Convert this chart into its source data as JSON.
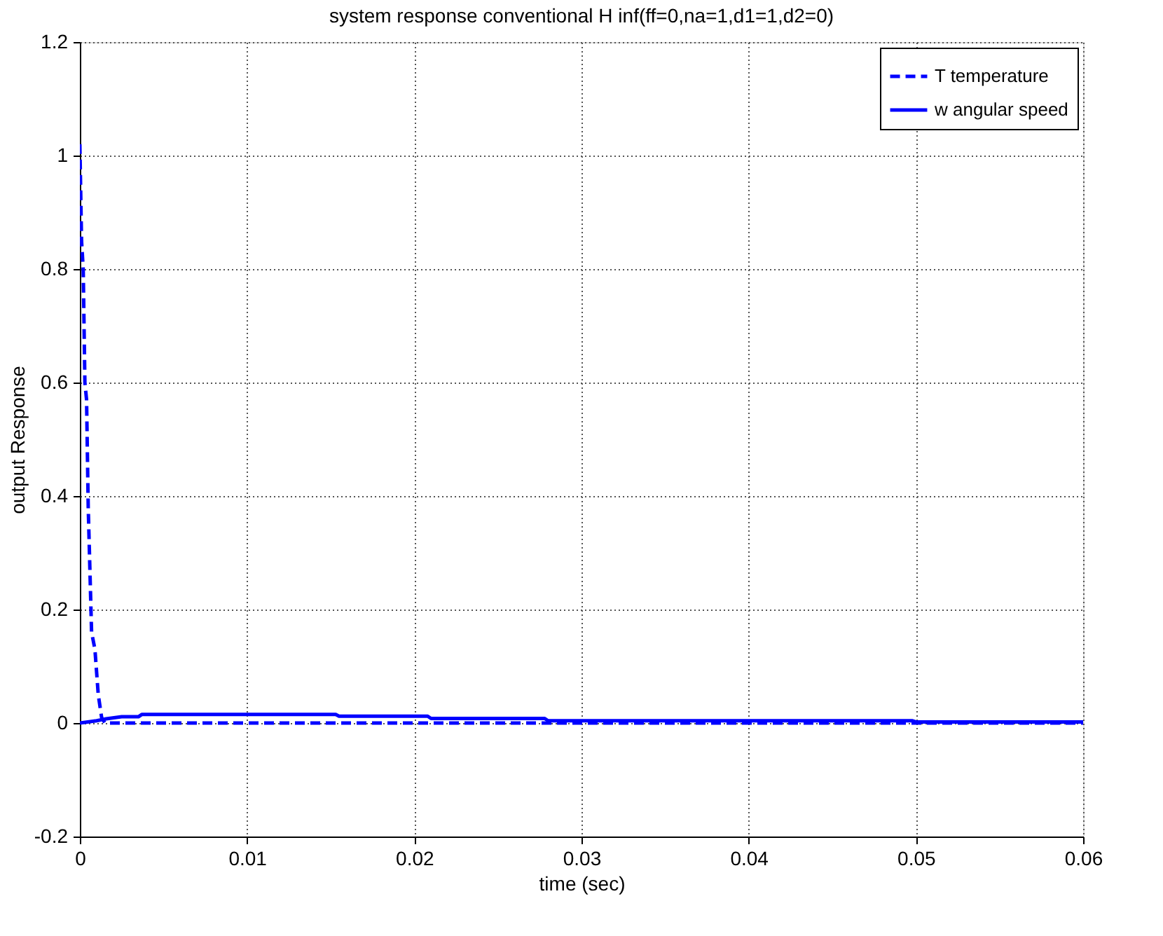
{
  "chart_data": {
    "type": "line",
    "title": "system response conventional H inf(ff=0,na=1,d1=1,d2=0)",
    "xlabel": "time (sec)",
    "ylabel": "output Response",
    "xlim": [
      0,
      0.06
    ],
    "ylim": [
      -0.2,
      1.2
    ],
    "xticks": [
      0,
      0.01,
      0.02,
      0.03,
      0.04,
      0.05,
      0.06
    ],
    "yticks": [
      -0.2,
      0,
      0.2,
      0.4,
      0.6,
      0.8,
      1,
      1.2
    ],
    "grid": true,
    "legend": "top right",
    "series": [
      {
        "name": "T temperature",
        "color": "#0000ff",
        "line_style": "dashed",
        "x": [
          0,
          0.0001,
          0.0002,
          0.0003,
          0.0004,
          0.0005,
          0.0007,
          0.0009,
          0.0011,
          0.0013,
          0.0015,
          0.01,
          0.02,
          0.03,
          0.04,
          0.05,
          0.06
        ],
        "values": [
          1.02,
          0.85,
          0.8,
          0.6,
          0.57,
          0.38,
          0.16,
          0.13,
          0.05,
          0.01,
          0,
          0,
          0,
          0,
          0,
          0,
          0
        ]
      },
      {
        "name": "w angular speed",
        "color": "#0000ff",
        "line_style": "solid",
        "x": [
          0,
          0.001,
          0.0015,
          0.0025,
          0.0035,
          0.0037,
          0.0153,
          0.0155,
          0.0208,
          0.021,
          0.0278,
          0.028,
          0.0498,
          0.05,
          0.06
        ],
        "values": [
          0,
          0.004,
          0.007,
          0.011,
          0.011,
          0.015,
          0.015,
          0.012,
          0.012,
          0.008,
          0.008,
          0.004,
          0.004,
          0.002,
          0.002
        ]
      }
    ]
  }
}
